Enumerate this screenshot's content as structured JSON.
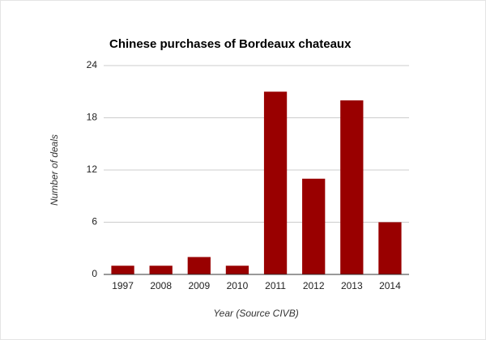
{
  "chart_data": {
    "type": "bar",
    "title": "Chinese purchases of Bordeaux chateaux",
    "x_label": "Year (Source CIVB)",
    "y_label": "Number of deals",
    "categories": [
      "1997",
      "2008",
      "2009",
      "2010",
      "2011",
      "2012",
      "2013",
      "2014"
    ],
    "values": [
      1,
      1,
      2,
      1,
      21,
      11,
      20,
      6
    ],
    "color": "#990000",
    "ylim": [
      0,
      24
    ],
    "yticks": [
      0,
      6,
      12,
      18,
      24
    ],
    "grid": true
  }
}
